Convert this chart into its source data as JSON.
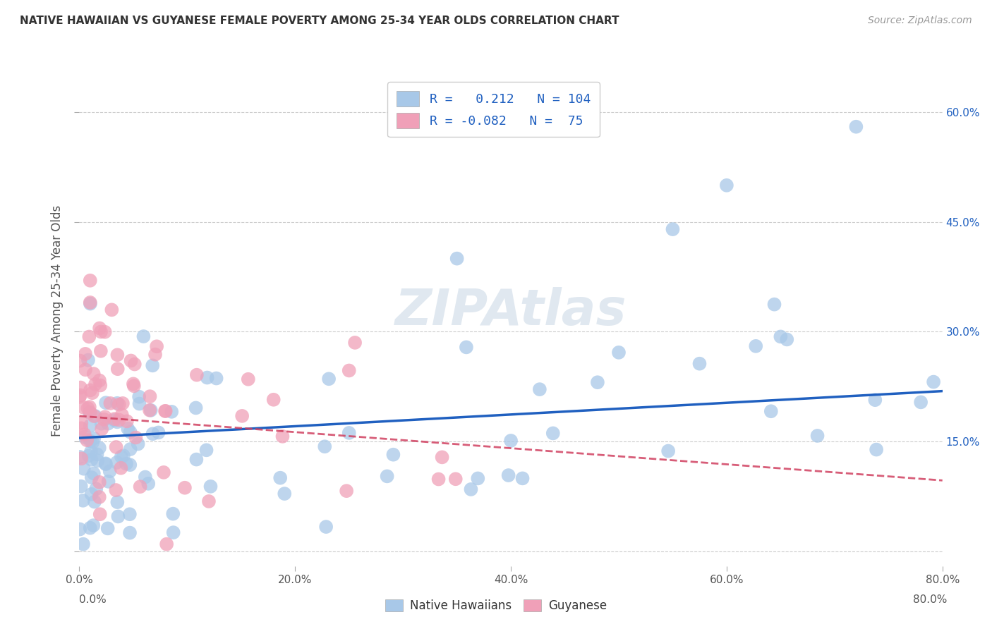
{
  "title": "NATIVE HAWAIIAN VS GUYANESE FEMALE POVERTY AMONG 25-34 YEAR OLDS CORRELATION CHART",
  "source": "Source: ZipAtlas.com",
  "ylabel": "Female Poverty Among 25-34 Year Olds",
  "xlim": [
    0.0,
    0.8
  ],
  "ylim": [
    -0.02,
    0.65
  ],
  "xtick_vals": [
    0.0,
    0.2,
    0.4,
    0.6,
    0.8
  ],
  "xtick_labels": [
    "0.0%",
    "20.0%",
    "40.0%",
    "60.0%",
    "80.0%"
  ],
  "ytick_vals": [
    0.0,
    0.15,
    0.3,
    0.45,
    0.6
  ],
  "ytick_labels_right": [
    "",
    "15.0%",
    "30.0%",
    "45.0%",
    "60.0%"
  ],
  "color_nh": "#a8c8e8",
  "color_gu": "#f0a0b8",
  "line_color_nh": "#2060c0",
  "line_color_gu": "#d04060",
  "background": "#ffffff",
  "grid_color": "#cccccc",
  "title_color": "#333333",
  "source_color": "#999999",
  "legend_text_color": "#2060c0",
  "r_nh": 0.212,
  "n_nh": 104,
  "r_gu": -0.082,
  "n_gu": 75,
  "nh_trend_start_y": 0.155,
  "nh_trend_end_y": 0.235,
  "gu_trend_start_y": 0.185,
  "gu_trend_end_y": 0.075,
  "watermark": "ZIPAtlas",
  "watermark_color": "#e0e8f0"
}
